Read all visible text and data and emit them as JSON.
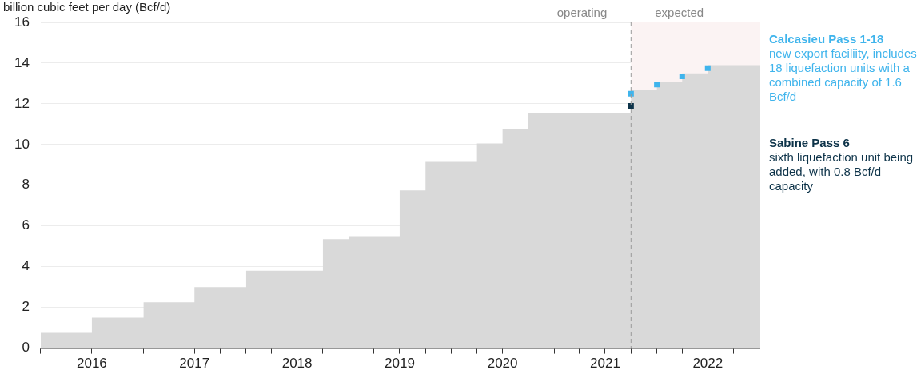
{
  "chart_data": {
    "type": "step",
    "ylabel": "billion cubic feet per day (Bcf/d)",
    "x": [
      "2016-01",
      "2016-07",
      "2017-01",
      "2017-07",
      "2018-01",
      "2018-10",
      "2019-01",
      "2019-07",
      "2019-10",
      "2020-04",
      "2020-07",
      "2020-10",
      "2021-10",
      "2022-01",
      "2022-04",
      "2022-07",
      "2023-01"
    ],
    "series": [
      {
        "type": "area",
        "color": "#d9d9d9",
        "values": [
          0.75,
          1.5,
          2.25,
          3.0,
          3.8,
          5.35,
          5.5,
          7.75,
          9.15,
          10.05,
          10.75,
          11.55,
          12.7,
          13.1,
          13.5,
          13.9,
          13.9
        ]
      },
      {
        "type": "scatter",
        "name": "Calcasieu Pass 1-18",
        "color": "#3fb4ec",
        "marker": "square",
        "x": [
          "2021-10",
          "2022-01",
          "2022-04",
          "2022-07"
        ],
        "values": [
          12.5,
          12.95,
          13.35,
          13.75
        ]
      },
      {
        "type": "scatter",
        "name": "Sabine Pass 6",
        "color": "#0d3349",
        "marker": "square",
        "x": [
          "2021-10"
        ],
        "values": [
          11.9
        ]
      }
    ],
    "annotations": [
      "new export faciliity, includes 18 liquefaction units with a combined capacity of 1.6 Bcf/d",
      "sixth liquefaction unit being added, with 0.8 Bcf/d capacity"
    ],
    "ref_lines": [
      {
        "axis": "x",
        "value": "2021-10",
        "label": "operating",
        "color": "#999999",
        "line_style": "dashed"
      }
    ],
    "bands": [
      {
        "axis": "x",
        "from": "2021-10",
        "to": "2023-01",
        "label": "expected",
        "color": "#fbf3f3"
      }
    ],
    "xlim": [
      "2016-01",
      "2023-01"
    ],
    "xticks": [
      {
        "value": "2016-01",
        "label": null
      },
      {
        "value": "2016-04",
        "label": null
      },
      {
        "value": "2016-07",
        "label": "2016"
      },
      {
        "value": "2016-10",
        "label": null
      },
      {
        "value": "2017-01",
        "label": null
      },
      {
        "value": "2017-04",
        "label": null
      },
      {
        "value": "2017-07",
        "label": "2017"
      },
      {
        "value": "2017-10",
        "label": null
      },
      {
        "value": "2018-01",
        "label": null
      },
      {
        "value": "2018-04",
        "label": null
      },
      {
        "value": "2018-07",
        "label": "2018"
      },
      {
        "value": "2018-10",
        "label": null
      },
      {
        "value": "2019-01",
        "label": null
      },
      {
        "value": "2019-04",
        "label": null
      },
      {
        "value": "2019-07",
        "label": "2019"
      },
      {
        "value": "2019-10",
        "label": null
      },
      {
        "value": "2020-01",
        "label": null
      },
      {
        "value": "2020-04",
        "label": null
      },
      {
        "value": "2020-07",
        "label": "2020"
      },
      {
        "value": "2020-10",
        "label": null
      },
      {
        "value": "2021-01",
        "label": null
      },
      {
        "value": "2021-04",
        "label": null
      },
      {
        "value": "2021-07",
        "label": "2021"
      },
      {
        "value": "2021-10",
        "label": null
      },
      {
        "value": "2022-01",
        "label": null
      },
      {
        "value": "2022-04",
        "label": null
      },
      {
        "value": "2022-07",
        "label": "2022"
      },
      {
        "value": "2022-10",
        "label": null
      },
      {
        "value": "2023-01",
        "label": null
      }
    ],
    "ylim": [
      0,
      16
    ],
    "yticks": [
      0,
      2,
      4,
      6,
      8,
      10,
      12,
      14,
      16
    ],
    "grid": "y",
    "legend": "right"
  }
}
